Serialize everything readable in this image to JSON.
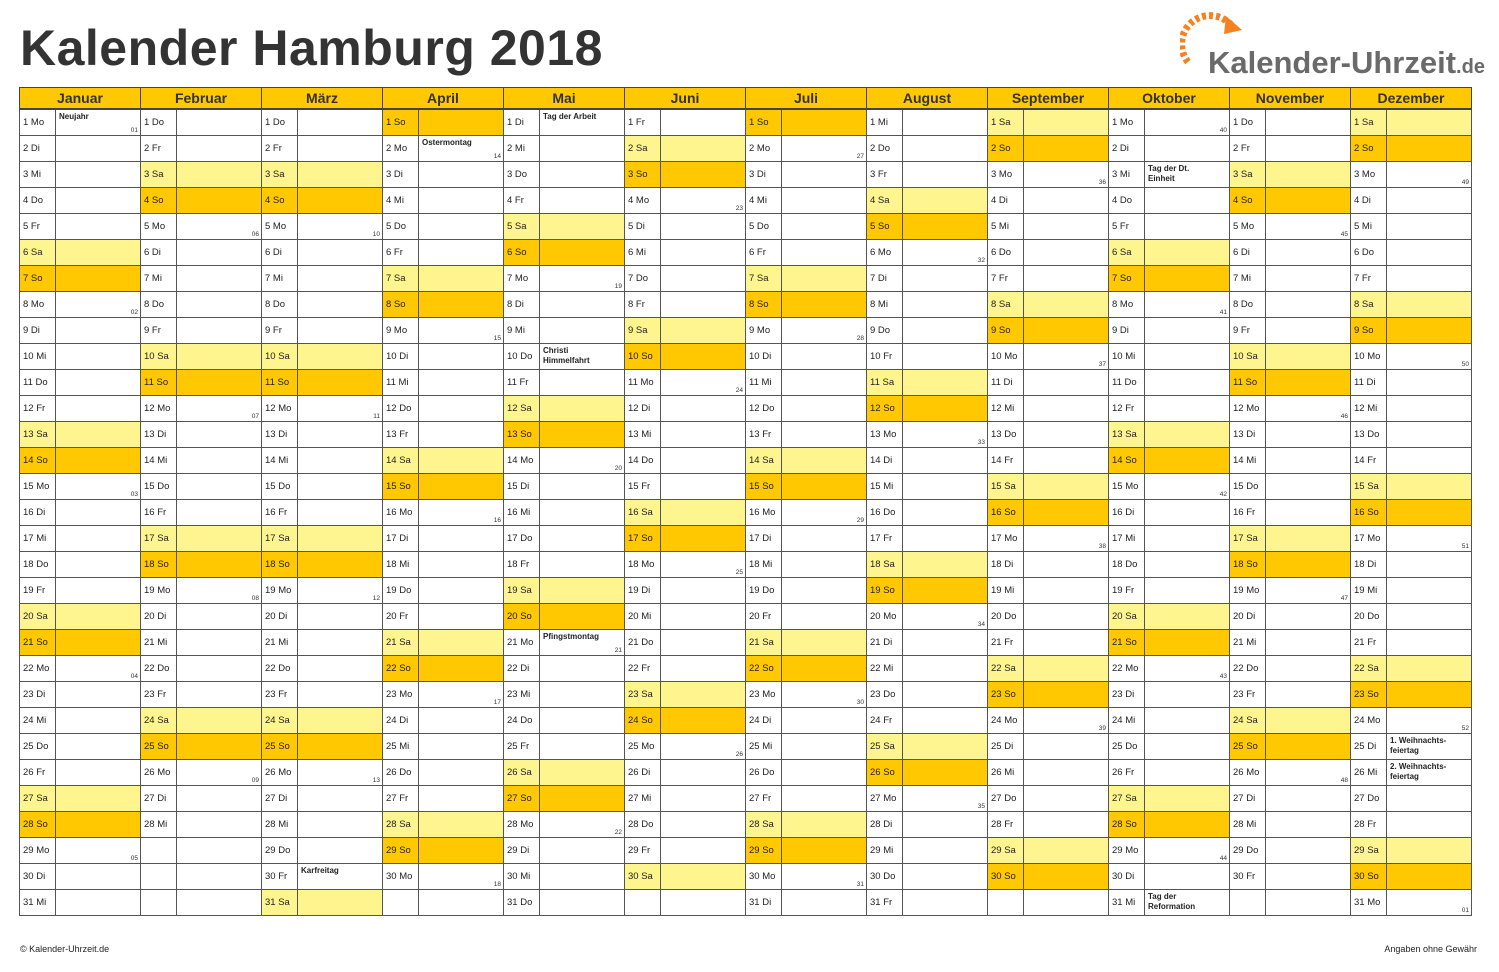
{
  "title": "Kalender Hamburg 2018",
  "logo": {
    "text": "Kalender-Uhrzeit",
    "tld": ".de",
    "icon": "clock-arrow-icon",
    "accent": "#f58220"
  },
  "colors": {
    "header": "#ffc800",
    "saturday": "#fff58e",
    "sunday": "#ffc800"
  },
  "months": [
    "Januar",
    "Februar",
    "März",
    "April",
    "Mai",
    "Juni",
    "Juli",
    "August",
    "September",
    "Oktober",
    "November",
    "Dezember"
  ],
  "days": [
    [
      "1 Mo",
      "2 Di",
      "3 Mi",
      "4 Do",
      "5 Fr",
      "6 Sa",
      "7 So",
      "8 Mo",
      "9 Di",
      "10 Mi",
      "11 Do",
      "12 Fr",
      "13 Sa",
      "14 So",
      "15 Mo",
      "16 Di",
      "17 Mi",
      "18 Do",
      "19 Fr",
      "20 Sa",
      "21 So",
      "22 Mo",
      "23 Di",
      "24 Mi",
      "25 Do",
      "26 Fr",
      "27 Sa",
      "28 So",
      "29 Mo",
      "30 Di",
      "31 Mi"
    ],
    [
      "1 Do",
      "2 Fr",
      "3 Sa",
      "4 So",
      "5 Mo",
      "6 Di",
      "7 Mi",
      "8 Do",
      "9 Fr",
      "10 Sa",
      "11 So",
      "12 Mo",
      "13 Di",
      "14 Mi",
      "15 Do",
      "16 Fr",
      "17 Sa",
      "18 So",
      "19 Mo",
      "20 Di",
      "21 Mi",
      "22 Do",
      "23 Fr",
      "24 Sa",
      "25 So",
      "26 Mo",
      "27 Di",
      "28 Mi"
    ],
    [
      "1 Do",
      "2 Fr",
      "3 Sa",
      "4 So",
      "5 Mo",
      "6 Di",
      "7 Mi",
      "8 Do",
      "9 Fr",
      "10 Sa",
      "11 So",
      "12 Mo",
      "13 Di",
      "14 Mi",
      "15 Do",
      "16 Fr",
      "17 Sa",
      "18 So",
      "19 Mo",
      "20 Di",
      "21 Mi",
      "22 Do",
      "23 Fr",
      "24 Sa",
      "25 So",
      "26 Mo",
      "27 Di",
      "28 Mi",
      "29 Do",
      "30 Fr",
      "31 Sa"
    ],
    [
      "1 So",
      "2 Mo",
      "3 Di",
      "4 Mi",
      "5 Do",
      "6 Fr",
      "7 Sa",
      "8 So",
      "9 Mo",
      "10 Di",
      "11 Mi",
      "12 Do",
      "13 Fr",
      "14 Sa",
      "15 So",
      "16 Mo",
      "17 Di",
      "18 Mi",
      "19 Do",
      "20 Fr",
      "21 Sa",
      "22 So",
      "23 Mo",
      "24 Di",
      "25 Mi",
      "26 Do",
      "27 Fr",
      "28 Sa",
      "29 So",
      "30 Mo"
    ],
    [
      "1 Di",
      "2 Mi",
      "3 Do",
      "4 Fr",
      "5 Sa",
      "6 So",
      "7 Mo",
      "8 Di",
      "9 Mi",
      "10 Do",
      "11 Fr",
      "12 Sa",
      "13 So",
      "14 Mo",
      "15 Di",
      "16 Mi",
      "17 Do",
      "18 Fr",
      "19 Sa",
      "20 So",
      "21 Mo",
      "22 Di",
      "23 Mi",
      "24 Do",
      "25 Fr",
      "26 Sa",
      "27 So",
      "28 Mo",
      "29 Di",
      "30 Mi",
      "31 Do"
    ],
    [
      "1 Fr",
      "2 Sa",
      "3 So",
      "4 Mo",
      "5 Di",
      "6 Mi",
      "7 Do",
      "8 Fr",
      "9 Sa",
      "10 So",
      "11 Mo",
      "12 Di",
      "13 Mi",
      "14 Do",
      "15 Fr",
      "16 Sa",
      "17 So",
      "18 Mo",
      "19 Di",
      "20 Mi",
      "21 Do",
      "22 Fr",
      "23 Sa",
      "24 So",
      "25 Mo",
      "26 Di",
      "27 Mi",
      "28 Do",
      "29 Fr",
      "30 Sa"
    ],
    [
      "1 So",
      "2 Mo",
      "3 Di",
      "4 Mi",
      "5 Do",
      "6 Fr",
      "7 Sa",
      "8 So",
      "9 Mo",
      "10 Di",
      "11 Mi",
      "12 Do",
      "13 Fr",
      "14 Sa",
      "15 So",
      "16 Mo",
      "17 Di",
      "18 Mi",
      "19 Do",
      "20 Fr",
      "21 Sa",
      "22 So",
      "23 Mo",
      "24 Di",
      "25 Mi",
      "26 Do",
      "27 Fr",
      "28 Sa",
      "29 So",
      "30 Mo",
      "31 Di"
    ],
    [
      "1 Mi",
      "2 Do",
      "3 Fr",
      "4 Sa",
      "5 So",
      "6 Mo",
      "7 Di",
      "8 Mi",
      "9 Do",
      "10 Fr",
      "11 Sa",
      "12 So",
      "13 Mo",
      "14 Di",
      "15 Mi",
      "16 Do",
      "17 Fr",
      "18 Sa",
      "19 So",
      "20 Mo",
      "21 Di",
      "22 Mi",
      "23 Do",
      "24 Fr",
      "25 Sa",
      "26 So",
      "27 Mo",
      "28 Di",
      "29 Mi",
      "30 Do",
      "31 Fr"
    ],
    [
      "1 Sa",
      "2 So",
      "3 Mo",
      "4 Di",
      "5 Mi",
      "6 Do",
      "7 Fr",
      "8 Sa",
      "9 So",
      "10 Mo",
      "11 Di",
      "12 Mi",
      "13 Do",
      "14 Fr",
      "15 Sa",
      "16 So",
      "17 Mo",
      "18 Di",
      "19 Mi",
      "20 Do",
      "21 Fr",
      "22 Sa",
      "23 So",
      "24 Mo",
      "25 Di",
      "26 Mi",
      "27 Do",
      "28 Fr",
      "29 Sa",
      "30 So"
    ],
    [
      "1 Mo",
      "2 Di",
      "3 Mi",
      "4 Do",
      "5 Fr",
      "6 Sa",
      "7 So",
      "8 Mo",
      "9 Di",
      "10 Mi",
      "11 Do",
      "12 Fr",
      "13 Sa",
      "14 So",
      "15 Mo",
      "16 Di",
      "17 Mi",
      "18 Do",
      "19 Fr",
      "20 Sa",
      "21 So",
      "22 Mo",
      "23 Di",
      "24 Mi",
      "25 Do",
      "26 Fr",
      "27 Sa",
      "28 So",
      "29 Mo",
      "30 Di",
      "31 Mi"
    ],
    [
      "1 Do",
      "2 Fr",
      "3 Sa",
      "4 So",
      "5 Mo",
      "6 Di",
      "7 Mi",
      "8 Do",
      "9 Fr",
      "10 Sa",
      "11 So",
      "12 Mo",
      "13 Di",
      "14 Mi",
      "15 Do",
      "16 Fr",
      "17 Sa",
      "18 So",
      "19 Mo",
      "20 Di",
      "21 Mi",
      "22 Do",
      "23 Fr",
      "24 Sa",
      "25 So",
      "26 Mo",
      "27 Di",
      "28 Mi",
      "29 Do",
      "30 Fr"
    ],
    [
      "1 Sa",
      "2 So",
      "3 Mo",
      "4 Di",
      "5 Mi",
      "6 Do",
      "7 Fr",
      "8 Sa",
      "9 So",
      "10 Mo",
      "11 Di",
      "12 Mi",
      "13 Do",
      "14 Fr",
      "15 Sa",
      "16 So",
      "17 Mo",
      "18 Di",
      "19 Mi",
      "20 Do",
      "21 Fr",
      "22 Sa",
      "23 So",
      "24 Mo",
      "25 Di",
      "26 Mi",
      "27 Do",
      "28 Fr",
      "29 Sa",
      "30 So",
      "31 Mo"
    ]
  ],
  "holidays": [
    {
      "m": 0,
      "d": 1,
      "text": "Neujahr"
    },
    {
      "m": 2,
      "d": 30,
      "text": "Karfreitag"
    },
    {
      "m": 3,
      "d": 2,
      "text": "Ostermontag"
    },
    {
      "m": 4,
      "d": 1,
      "text": "Tag der Arbeit"
    },
    {
      "m": 4,
      "d": 10,
      "text": "Christi\nHimmelfahrt"
    },
    {
      "m": 4,
      "d": 21,
      "text": "Pfingstmontag"
    },
    {
      "m": 9,
      "d": 3,
      "text": "Tag der Dt.\nEinheit"
    },
    {
      "m": 9,
      "d": 31,
      "text": "Tag der\nReformation"
    },
    {
      "m": 11,
      "d": 25,
      "text": "1. Weihnachts-\nfeiertag"
    },
    {
      "m": 11,
      "d": 26,
      "text": "2. Weihnachts-\nfeiertag"
    }
  ],
  "weeks": [
    {
      "m": 0,
      "d": 1,
      "w": "01"
    },
    {
      "m": 0,
      "d": 8,
      "w": "02"
    },
    {
      "m": 0,
      "d": 15,
      "w": "03"
    },
    {
      "m": 0,
      "d": 22,
      "w": "04"
    },
    {
      "m": 0,
      "d": 29,
      "w": "05"
    },
    {
      "m": 1,
      "d": 5,
      "w": "06"
    },
    {
      "m": 1,
      "d": 12,
      "w": "07"
    },
    {
      "m": 1,
      "d": 19,
      "w": "08"
    },
    {
      "m": 1,
      "d": 26,
      "w": "09"
    },
    {
      "m": 2,
      "d": 5,
      "w": "10"
    },
    {
      "m": 2,
      "d": 12,
      "w": "11"
    },
    {
      "m": 2,
      "d": 19,
      "w": "12"
    },
    {
      "m": 2,
      "d": 26,
      "w": "13"
    },
    {
      "m": 3,
      "d": 2,
      "w": "14"
    },
    {
      "m": 3,
      "d": 9,
      "w": "15"
    },
    {
      "m": 3,
      "d": 16,
      "w": "16"
    },
    {
      "m": 3,
      "d": 23,
      "w": "17"
    },
    {
      "m": 3,
      "d": 30,
      "w": "18"
    },
    {
      "m": 4,
      "d": 7,
      "w": "19"
    },
    {
      "m": 4,
      "d": 14,
      "w": "20"
    },
    {
      "m": 4,
      "d": 21,
      "w": "21"
    },
    {
      "m": 4,
      "d": 28,
      "w": "22"
    },
    {
      "m": 5,
      "d": 4,
      "w": "23"
    },
    {
      "m": 5,
      "d": 11,
      "w": "24"
    },
    {
      "m": 5,
      "d": 18,
      "w": "25"
    },
    {
      "m": 5,
      "d": 25,
      "w": "26"
    },
    {
      "m": 6,
      "d": 2,
      "w": "27"
    },
    {
      "m": 6,
      "d": 9,
      "w": "28"
    },
    {
      "m": 6,
      "d": 16,
      "w": "29"
    },
    {
      "m": 6,
      "d": 23,
      "w": "30"
    },
    {
      "m": 6,
      "d": 30,
      "w": "31"
    },
    {
      "m": 7,
      "d": 6,
      "w": "32"
    },
    {
      "m": 7,
      "d": 13,
      "w": "33"
    },
    {
      "m": 7,
      "d": 20,
      "w": "34"
    },
    {
      "m": 7,
      "d": 27,
      "w": "35"
    },
    {
      "m": 8,
      "d": 3,
      "w": "36"
    },
    {
      "m": 8,
      "d": 10,
      "w": "37"
    },
    {
      "m": 8,
      "d": 17,
      "w": "38"
    },
    {
      "m": 8,
      "d": 24,
      "w": "39"
    },
    {
      "m": 9,
      "d": 1,
      "w": "40"
    },
    {
      "m": 9,
      "d": 8,
      "w": "41"
    },
    {
      "m": 9,
      "d": 15,
      "w": "42"
    },
    {
      "m": 9,
      "d": 22,
      "w": "43"
    },
    {
      "m": 9,
      "d": 29,
      "w": "44"
    },
    {
      "m": 10,
      "d": 5,
      "w": "45"
    },
    {
      "m": 10,
      "d": 12,
      "w": "46"
    },
    {
      "m": 10,
      "d": 19,
      "w": "47"
    },
    {
      "m": 10,
      "d": 26,
      "w": "48"
    },
    {
      "m": 11,
      "d": 3,
      "w": "49"
    },
    {
      "m": 11,
      "d": 10,
      "w": "50"
    },
    {
      "m": 11,
      "d": 17,
      "w": "51"
    },
    {
      "m": 11,
      "d": 24,
      "w": "52"
    },
    {
      "m": 11,
      "d": 31,
      "w": "01"
    }
  ],
  "footer": {
    "left": "© Kalender-Uhrzeit.de",
    "right": "Angaben ohne Gewähr"
  }
}
